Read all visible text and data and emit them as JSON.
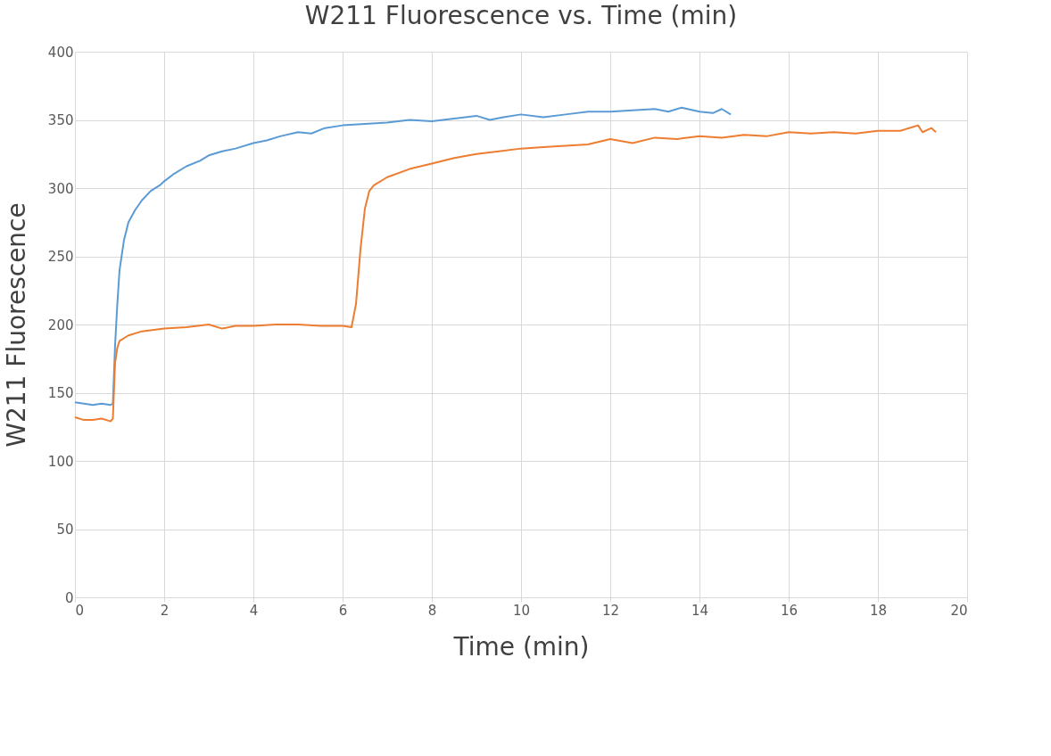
{
  "chart_data": {
    "type": "line",
    "title": "W211 Fluorescence vs. Time (min)",
    "xlabel": "Time (min)",
    "ylabel": "W211 Fluorescence",
    "xlim": [
      0,
      20
    ],
    "xticks": [
      0,
      2,
      4,
      6,
      8,
      10,
      12,
      14,
      16,
      18,
      20
    ],
    "ylim": [
      0,
      400
    ],
    "yticks": [
      0,
      50,
      100,
      150,
      200,
      250,
      300,
      350,
      400
    ],
    "grid": true,
    "legend": false,
    "marker": "none",
    "line_style": "solid",
    "series": [
      {
        "color": "#5b9bd5",
        "x": [
          0,
          0.2,
          0.4,
          0.6,
          0.8,
          0.85,
          0.9,
          0.95,
          1.0,
          1.1,
          1.2,
          1.35,
          1.5,
          1.7,
          1.9,
          2.0,
          2.2,
          2.5,
          2.8,
          3.0,
          3.3,
          3.6,
          4.0,
          4.3,
          4.6,
          5.0,
          5.3,
          5.6,
          6.0,
          6.5,
          7.0,
          7.5,
          8.0,
          8.5,
          9.0,
          9.3,
          9.6,
          10.0,
          10.5,
          11.0,
          11.5,
          12.0,
          12.5,
          13.0,
          13.3,
          13.6,
          14.0,
          14.3,
          14.5,
          14.7
        ],
        "values": [
          143,
          142,
          141,
          142,
          141,
          142,
          185,
          215,
          240,
          262,
          275,
          284,
          291,
          298,
          302,
          305,
          310,
          316,
          320,
          324,
          327,
          329,
          333,
          335,
          338,
          341,
          340,
          344,
          346,
          347,
          348,
          350,
          349,
          351,
          353,
          350,
          352,
          354,
          352,
          354,
          356,
          356,
          357,
          358,
          356,
          359,
          356,
          355,
          358,
          354
        ]
      },
      {
        "color": "#ed7d31",
        "x": [
          0,
          0.2,
          0.4,
          0.6,
          0.8,
          0.85,
          0.9,
          0.95,
          1.0,
          1.2,
          1.5,
          2.0,
          2.5,
          3.0,
          3.3,
          3.6,
          4.0,
          4.5,
          5.0,
          5.5,
          6.0,
          6.2,
          6.3,
          6.4,
          6.5,
          6.6,
          6.7,
          7.0,
          7.5,
          8.0,
          8.5,
          9.0,
          9.5,
          10.0,
          10.5,
          11.0,
          11.5,
          12.0,
          12.5,
          13.0,
          13.5,
          14.0,
          14.5,
          15.0,
          15.5,
          16.0,
          16.5,
          17.0,
          17.5,
          18.0,
          18.5,
          18.9,
          19.0,
          19.2,
          19.3
        ],
        "values": [
          132,
          130,
          130,
          131,
          129,
          131,
          172,
          183,
          188,
          192,
          195,
          197,
          198,
          200,
          197,
          199,
          199,
          200,
          200,
          199,
          199,
          198,
          215,
          255,
          285,
          298,
          302,
          308,
          314,
          318,
          322,
          325,
          327,
          329,
          330,
          331,
          332,
          336,
          333,
          337,
          336,
          338,
          337,
          339,
          338,
          341,
          340,
          341,
          340,
          342,
          342,
          346,
          341,
          344,
          341
        ]
      }
    ]
  }
}
